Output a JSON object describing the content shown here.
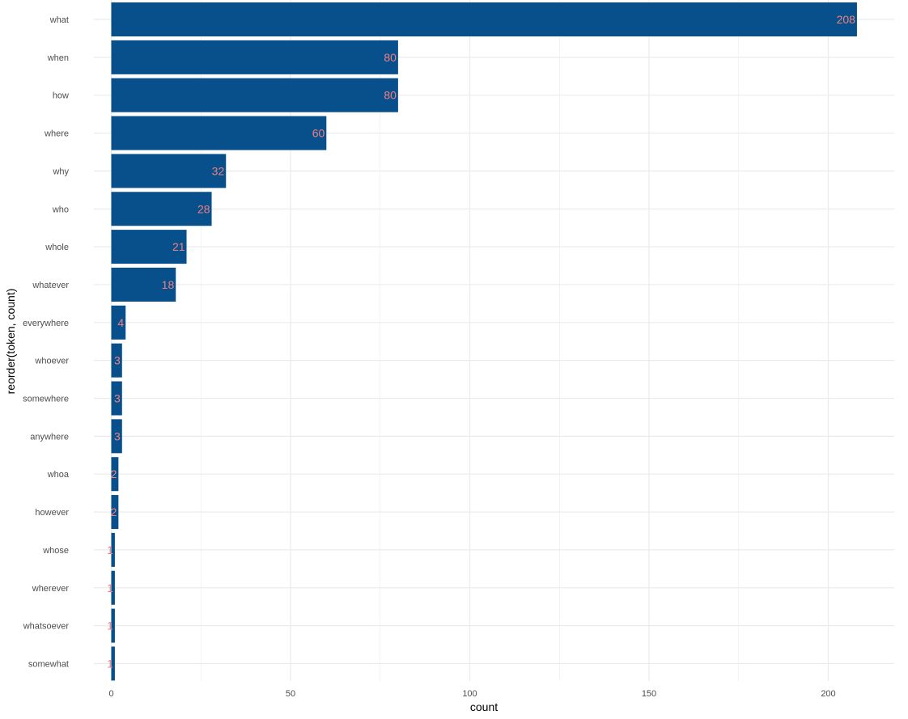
{
  "chart_data": {
    "type": "bar",
    "orientation": "horizontal",
    "categories": [
      "what",
      "when",
      "how",
      "where",
      "why",
      "who",
      "whole",
      "whatever",
      "everywhere",
      "whoever",
      "somewhere",
      "anywhere",
      "whoa",
      "however",
      "whose",
      "wherever",
      "whatsoever",
      "somewhat"
    ],
    "values": [
      208,
      80,
      80,
      60,
      32,
      28,
      21,
      18,
      4,
      3,
      3,
      3,
      2,
      2,
      1,
      1,
      1,
      1
    ],
    "xlabel": "count",
    "ylabel": "reorder(token, count)",
    "xlim": [
      0,
      218
    ],
    "x_ticks": [
      0,
      50,
      100,
      150,
      200
    ],
    "grid": true,
    "legend": "none",
    "bar_color": "#08508c",
    "label_color": "#f08080",
    "grid_color": "#ebebeb"
  }
}
